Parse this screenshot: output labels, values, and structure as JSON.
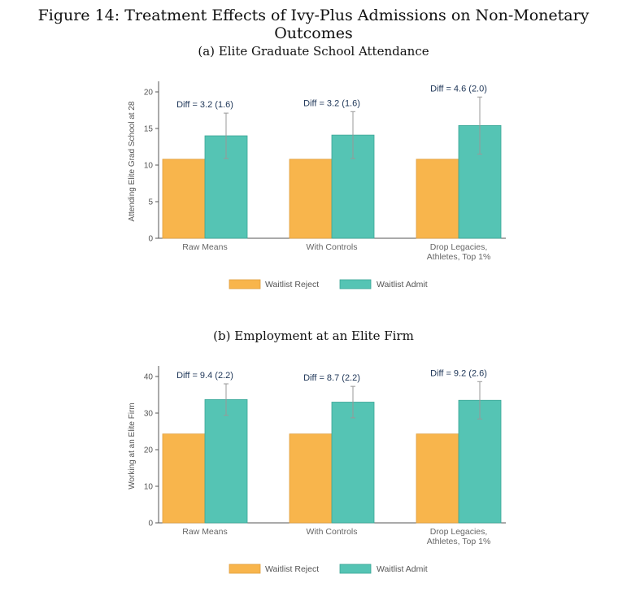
{
  "figure_title": "Figure 14: Treatment Effects of Ivy-Plus Admissions on Non-Monetary Outcomes",
  "colors": {
    "reject": "#f8b54c",
    "admit": "#55c4b4",
    "reject_edge": "#e0a040",
    "admit_edge": "#3aa596",
    "error_bar": "#999999"
  },
  "chart_data": [
    {
      "panel_title": "(a) Elite Graduate School Attendance",
      "type": "bar",
      "ylabel": "Attending Elite Grad School at 28",
      "ylim": [
        0,
        21
      ],
      "yticks": [
        0,
        5,
        10,
        15,
        20
      ],
      "categories": [
        [
          "Raw Means"
        ],
        [
          "With Controls"
        ],
        [
          "Drop Legacies,",
          "Athletes, Top 1%"
        ]
      ],
      "series": [
        {
          "name": "Waitlist Reject",
          "values": [
            10.8,
            10.8,
            10.8
          ]
        },
        {
          "name": "Waitlist Admit",
          "values": [
            14.0,
            14.1,
            15.4
          ],
          "ci_low": [
            10.9,
            10.9,
            11.5
          ],
          "ci_high": [
            17.1,
            17.3,
            19.3
          ]
        }
      ],
      "annotations": [
        "Diff = 3.2 (1.6)",
        "Diff = 3.2 (1.6)",
        "Diff = 4.6 (2.0)"
      ],
      "legend": [
        "Waitlist Reject",
        "Waitlist Admit"
      ]
    },
    {
      "panel_title": "(b) Employment at an Elite Firm",
      "type": "bar",
      "ylabel": "Working at an Elite Firm",
      "ylim": [
        0,
        42
      ],
      "yticks": [
        0,
        10,
        20,
        30,
        40
      ],
      "categories": [
        [
          "Raw Means"
        ],
        [
          "With Controls"
        ],
        [
          "Drop Legacies,",
          "Athletes, Top 1%"
        ]
      ],
      "series": [
        {
          "name": "Waitlist Reject",
          "values": [
            24.3,
            24.3,
            24.3
          ]
        },
        {
          "name": "Waitlist Admit",
          "values": [
            33.7,
            33.0,
            33.5
          ],
          "ci_low": [
            29.4,
            28.7,
            28.4
          ],
          "ci_high": [
            38.0,
            37.3,
            38.6
          ]
        }
      ],
      "annotations": [
        "Diff = 9.4 (2.2)",
        "Diff = 8.7 (2.2)",
        "Diff = 9.2 (2.6)"
      ],
      "legend": [
        "Waitlist Reject",
        "Waitlist Admit"
      ]
    }
  ]
}
